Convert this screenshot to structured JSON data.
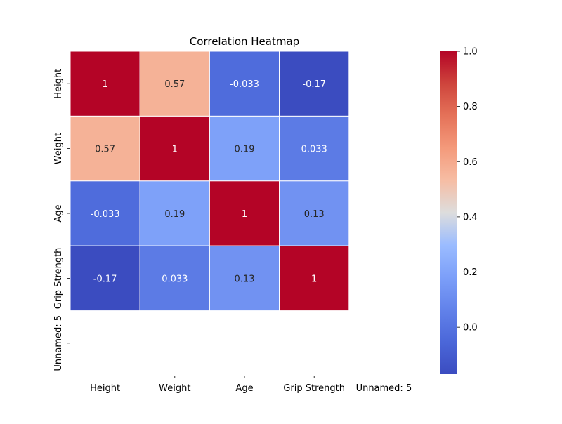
{
  "chart_data": {
    "type": "heatmap",
    "title": "Correlation Heatmap",
    "x_labels": [
      "Height",
      "Weight",
      "Age",
      "Grip Strength",
      "Unnamed: 5"
    ],
    "y_labels": [
      "Height",
      "Weight",
      "Age",
      "Grip Strength",
      "Unnamed: 5"
    ],
    "matrix": [
      [
        1.0,
        0.57,
        -0.033,
        -0.17,
        null
      ],
      [
        0.57,
        1.0,
        0.19,
        0.033,
        null
      ],
      [
        -0.033,
        0.19,
        1.0,
        0.13,
        null
      ],
      [
        -0.17,
        0.033,
        0.13,
        1.0,
        null
      ],
      [
        null,
        null,
        null,
        null,
        null
      ]
    ],
    "annotations": [
      [
        "1",
        "0.57",
        "-0.033",
        "-0.17",
        ""
      ],
      [
        "0.57",
        "1",
        "0.19",
        "0.033",
        ""
      ],
      [
        "-0.033",
        "0.19",
        "1",
        "0.13",
        ""
      ],
      [
        "-0.17",
        "0.033",
        "0.13",
        "1",
        ""
      ],
      [
        "",
        "",
        "",
        "",
        ""
      ]
    ],
    "colormap": "coolwarm",
    "colorbar": {
      "range": [
        -0.17,
        1.0
      ],
      "ticks": [
        0.0,
        0.2,
        0.4,
        0.6,
        0.8,
        1.0
      ],
      "tick_labels": [
        "0.0",
        "0.2",
        "0.4",
        "0.6",
        "0.8",
        "1.0"
      ]
    },
    "grid": false,
    "legend": "colorbar right"
  }
}
